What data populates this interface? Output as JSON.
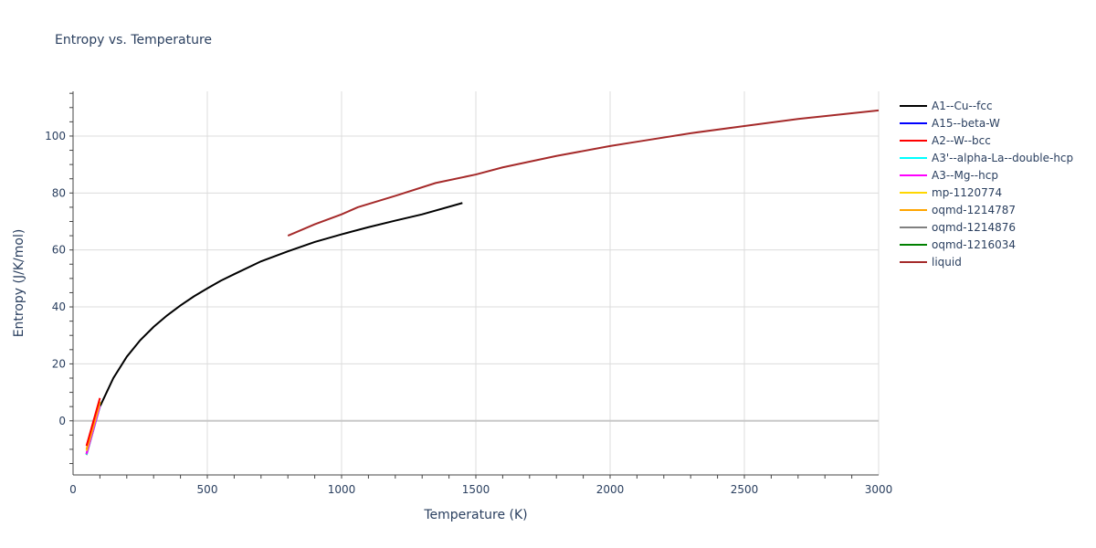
{
  "chart_data": {
    "type": "line",
    "title": "Entropy vs. Temperature",
    "xlabel": "Temperature (K)",
    "ylabel": "Entropy (J/K/mol)",
    "xlim": [
      0,
      3000
    ],
    "ylim": [
      -19,
      115.7
    ],
    "xticks": [
      0,
      500,
      1000,
      1500,
      2000,
      2500,
      3000
    ],
    "yticks": [
      0,
      20,
      40,
      60,
      80,
      100
    ],
    "grid": true,
    "legend_position": "right",
    "series": [
      {
        "name": "A1--Cu--fcc",
        "color": "#000000",
        "x": [
          100,
          150,
          200,
          250,
          300,
          350,
          400,
          450,
          500,
          550,
          600,
          700,
          800,
          900,
          1000,
          1100,
          1200,
          1300,
          1450
        ],
        "y": [
          5,
          15,
          22.5,
          28.3,
          33,
          37,
          40.5,
          43.7,
          46.5,
          49.2,
          51.5,
          56,
          59.5,
          62.8,
          65.5,
          68,
          70.3,
          72.5,
          76.5
        ]
      },
      {
        "name": "A15--beta-W",
        "color": "#0000ff",
        "x": [
          50,
          100
        ],
        "y": [
          -11.5,
          5.5
        ]
      },
      {
        "name": "A2--W--bcc",
        "color": "#ff0000",
        "x": [
          50,
          100
        ],
        "y": [
          -8.8,
          8
        ]
      },
      {
        "name": "A3'--alpha-La--double-hcp",
        "color": "#00ffff",
        "x": [
          50,
          100
        ],
        "y": [
          -11.8,
          5.2
        ]
      },
      {
        "name": "A3--Mg--hcp",
        "color": "#ff00ff",
        "x": [
          50,
          100
        ],
        "y": [
          -11.6,
          5.3
        ]
      },
      {
        "name": "mp-1120774",
        "color": "#ffd700",
        "x": [
          50,
          100
        ],
        "y": [
          -10.5,
          6.3
        ]
      },
      {
        "name": "oqmd-1214787",
        "color": "#ffa500",
        "x": [
          50,
          100
        ],
        "y": [
          -10,
          6.8
        ]
      },
      {
        "name": "oqmd-1214876",
        "color": "#808080",
        "x": [
          50,
          100
        ],
        "y": [
          -12,
          5
        ]
      },
      {
        "name": "oqmd-1216034",
        "color": "#008000",
        "x": [
          50,
          100
        ],
        "y": [
          -11.7,
          5.2
        ]
      },
      {
        "name": "liquid",
        "color": "#a52a2a",
        "x": [
          800,
          900,
          1000,
          1060,
          1200,
          1350,
          1500,
          1600,
          1800,
          2000,
          2100,
          2300,
          2500,
          2700,
          3000
        ],
        "y": [
          65,
          69,
          72.5,
          75,
          79,
          83.5,
          86.5,
          89,
          93,
          96.5,
          98,
          101,
          103.5,
          106,
          109
        ]
      }
    ]
  }
}
